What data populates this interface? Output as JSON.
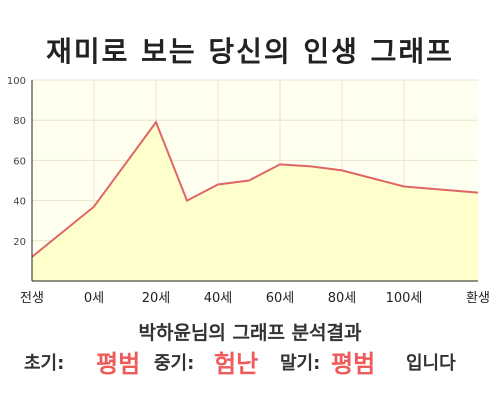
{
  "title": "재미로 보는 당신의 인생 그래프",
  "chart_data": {
    "type": "area",
    "x_labels": [
      "전생",
      "0세",
      "20세",
      "40세",
      "60세",
      "80세",
      "100세",
      "환생"
    ],
    "ylim": [
      0,
      100
    ],
    "y_ticks": [
      20,
      40,
      60,
      80,
      100
    ],
    "grid": true,
    "points": [
      {
        "x": "전생",
        "y": 12
      },
      {
        "x": "0세",
        "y": 37
      },
      {
        "x": "20세",
        "y": 79
      },
      {
        "x": "30세",
        "y": 40
      },
      {
        "x": "40세",
        "y": 48
      },
      {
        "x": "50세",
        "y": 50
      },
      {
        "x": "60세",
        "y": 58
      },
      {
        "x": "70세",
        "y": 57
      },
      {
        "x": "80세",
        "y": 55
      },
      {
        "x": "100세",
        "y": 47
      },
      {
        "x": "환생",
        "y": 44
      }
    ],
    "colors": {
      "line": "#e06666",
      "fill": "#ffffcc",
      "plot_bg": "#fffff0",
      "grid": "#e6e6cc"
    }
  },
  "summary": "박하윤님의 그래프 분석결과",
  "result": {
    "early_label": "초기:",
    "early_value": "평범",
    "middle_label": "중기:",
    "middle_value": "험난",
    "late_label": "말기:",
    "late_value": "평범",
    "ending": "입니다"
  }
}
